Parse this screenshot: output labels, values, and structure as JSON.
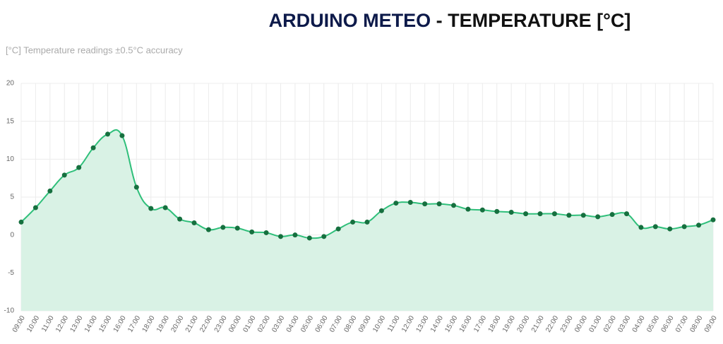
{
  "chart_data": {
    "type": "line",
    "title": "ARDUINO METEO",
    "title_suffix": " - TEMPERATURE [°C]",
    "subtitle": "[°C] Temperature readings ±0.5°C accuracy",
    "categories": [
      "09:00",
      "10:00",
      "11:00",
      "12:00",
      "13:00",
      "14:00",
      "15:00",
      "16:00",
      "17:00",
      "18:00",
      "19:00",
      "20:00",
      "21:00",
      "22:00",
      "23:00",
      "00:00",
      "01:00",
      "02:00",
      "03:00",
      "04:00",
      "05:00",
      "06:00",
      "07:00",
      "08:00",
      "09:00",
      "10:00",
      "11:00",
      "12:00",
      "13:00",
      "14:00",
      "15:00",
      "16:00",
      "17:00",
      "18:00",
      "19:00",
      "20:00",
      "21:00",
      "22:00",
      "23:00",
      "00:00",
      "01:00",
      "02:00",
      "03:00",
      "04:00",
      "05:00",
      "06:00",
      "07:00",
      "08:00",
      "09:00"
    ],
    "values": [
      1.7,
      3.6,
      5.8,
      7.9,
      8.9,
      11.5,
      13.3,
      13.1,
      6.3,
      3.5,
      3.6,
      2.1,
      1.6,
      0.7,
      1.0,
      0.9,
      0.4,
      0.3,
      -0.2,
      0.0,
      -0.4,
      -0.2,
      0.8,
      1.7,
      1.7,
      3.2,
      4.2,
      4.3,
      4.1,
      4.1,
      3.9,
      3.4,
      3.3,
      3.1,
      3.0,
      2.8,
      2.8,
      2.8,
      2.6,
      2.6,
      2.4,
      2.7,
      2.8,
      1.0,
      1.1,
      0.8,
      1.1,
      1.3,
      2.0
    ],
    "color": "#2fbf7a",
    "point_color": "#16703f",
    "fill_color": "#d9f2e5",
    "ylim": [
      -10,
      20
    ],
    "yticks": [
      -10,
      -5,
      0,
      5,
      10,
      15,
      20
    ],
    "grid": true
  }
}
